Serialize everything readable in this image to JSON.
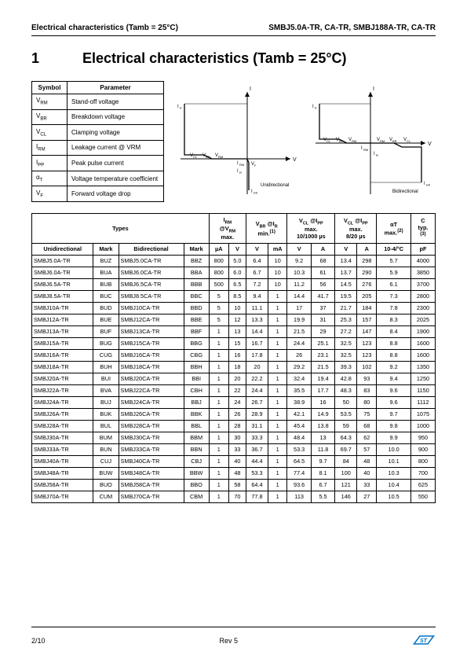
{
  "header": {
    "left": "Electrical characteristics (Tamb = 25°C)",
    "right": "SMBJ5.0A-TR, CA-TR, SMBJ188A-TR, CA-TR"
  },
  "section": {
    "num": "1",
    "title": "Electrical characteristics (Tamb = 25°C)"
  },
  "symbol_table": {
    "headers": [
      "Symbol",
      "Parameter"
    ],
    "rows": [
      {
        "sym": "V",
        "sub": "RM",
        "param": "Stand-off voltage"
      },
      {
        "sym": "V",
        "sub": "BR",
        "param": "Breakdown voltage"
      },
      {
        "sym": "V",
        "sub": "CL",
        "param": "Clamping voltage"
      },
      {
        "sym": "I",
        "sub": "RM",
        "param": "Leakage current @ VRM"
      },
      {
        "sym": "I",
        "sub": "PP",
        "param": "Peak pulse current"
      },
      {
        "sym": "α",
        "sub": "T",
        "param": "Voltage temperature coefficient"
      },
      {
        "sym": "V",
        "sub": "F",
        "param": "Forward voltage drop"
      }
    ]
  },
  "diagrams": {
    "left_label": "Unidirectional",
    "right_label": "Bidirectional",
    "axis_labels": {
      "vcl": "V_CL",
      "vbr": "V_BR",
      "vrm": "V_RM",
      "ir": "I_R",
      "irm": "I_RM",
      "if": "I_F",
      "ipp": "I_PP",
      "vf": "V_F",
      "i": "I",
      "v": "V"
    }
  },
  "data_table": {
    "group_headers": [
      {
        "label": "Types",
        "colspan": 4
      },
      {
        "label_html": "I<sub>RM</sub><br>@V<sub>RM</sub><br>max.",
        "colspan": 2
      },
      {
        "label_html": "V<sub>BR</sub> @I<sub>R</sub><br>min.<sup>(1)</sup>",
        "colspan": 2
      },
      {
        "label_html": "V<sub>CL</sub> @I<sub>PP</sub><br>max.<br>10/1000 µs",
        "colspan": 2
      },
      {
        "label_html": "V<sub>CL</sub> @I<sub>PP</sub><br>max.<br>8/20 µs",
        "colspan": 2
      },
      {
        "label_html": "αT<br>max.<sup>(2)</sup>",
        "colspan": 1
      },
      {
        "label_html": "C<br>typ.<br><sup>(3)</sup>",
        "colspan": 1
      }
    ],
    "sub_headers": [
      "Unidirectional",
      "Mark",
      "Bidirectional",
      "Mark",
      "µA",
      "V",
      "V",
      "mA",
      "V",
      "A",
      "V",
      "A",
      "10-4/°C",
      "pF"
    ],
    "rows": [
      [
        "SMBJ5.0A-TR",
        "BUZ",
        "SMBJ5.0CA-TR",
        "BBZ",
        "800",
        "5.0",
        "6.4",
        "10",
        "9.2",
        "68",
        "13.4",
        "298",
        "5.7",
        "4000"
      ],
      [
        "SMBJ6.0A-TR",
        "BUA",
        "SMBJ6.0CA-TR",
        "BBA",
        "800",
        "6.0",
        "6.7",
        "10",
        "10.3",
        "61",
        "13.7",
        "290",
        "5.9",
        "3850"
      ],
      [
        "SMBJ6.5A-TR",
        "BUB",
        "SMBJ6.5CA-TR",
        "BBB",
        "500",
        "6.5",
        "7.2",
        "10",
        "11.2",
        "56",
        "14.5",
        "276",
        "6.1",
        "3700"
      ],
      [
        "SMBJ8.5A-TR",
        "BUC",
        "SMBJ8.5CA-TR",
        "BBC",
        "5",
        "8.5",
        "9.4",
        "1",
        "14.4",
        "41.7",
        "19.5",
        "205",
        "7.3",
        "2800"
      ],
      [
        "SMBJ10A-TR",
        "BUD",
        "SMBJ10CA-TR",
        "BBD",
        "5",
        "10",
        "11.1",
        "1",
        "17",
        "37",
        "21.7",
        "184",
        "7.8",
        "2300"
      ],
      [
        "SMBJ12A-TR",
        "BUE",
        "SMBJ12CA-TR",
        "BBE",
        "5",
        "12",
        "13.3",
        "1",
        "19.9",
        "31",
        "25.3",
        "157",
        "8.3",
        "2025"
      ],
      [
        "SMBJ13A-TR",
        "BUF",
        "SMBJ13CA-TR",
        "BBF",
        "1",
        "13",
        "14.4",
        "1",
        "21.5",
        "29",
        "27.2",
        "147",
        "8.4",
        "1900"
      ],
      [
        "SMBJ15A-TR",
        "BUG",
        "SMBJ15CA-TR",
        "BBG",
        "1",
        "15",
        "16.7",
        "1",
        "24.4",
        "25.1",
        "32.5",
        "123",
        "8.8",
        "1600"
      ],
      [
        "SMBJ16A-TR",
        "CUG",
        "SMBJ16CA-TR",
        "CBG",
        "1",
        "16",
        "17.8",
        "1",
        "26",
        "23.1",
        "32.5",
        "123",
        "8.8",
        "1600"
      ],
      [
        "SMBJ18A-TR",
        "BUH",
        "SMBJ18CA-TR",
        "BBH",
        "1",
        "18",
        "20",
        "1",
        "29.2",
        "21.5",
        "39.3",
        "102",
        "9.2",
        "1350"
      ],
      [
        "SMBJ20A-TR",
        "BUI",
        "SMBJ20CA-TR",
        "BBI",
        "1",
        "20",
        "22.2",
        "1",
        "32.4",
        "19.4",
        "42.8",
        "93",
        "9.4",
        "1250"
      ],
      [
        "SMBJ22A-TR",
        "BVA",
        "SMBJ22CA-TR",
        "CBH",
        "1",
        "22",
        "24.4",
        "1",
        "35.5",
        "17.7",
        "48.3",
        "83",
        "9.6",
        "1150"
      ],
      [
        "SMBJ24A-TR",
        "BUJ",
        "SMBJ24CA-TR",
        "BBJ",
        "1",
        "24",
        "26.7",
        "1",
        "38.9",
        "16",
        "50",
        "80",
        "9.6",
        "1112"
      ],
      [
        "SMBJ26A-TR",
        "BUK",
        "SMBJ26CA-TR",
        "BBK",
        "1",
        "26",
        "28.9",
        "1",
        "42.1",
        "14.9",
        "53.5",
        "75",
        "9.7",
        "1075"
      ],
      [
        "SMBJ28A-TR",
        "BUL",
        "SMBJ28CA-TR",
        "BBL",
        "1",
        "28",
        "31.1",
        "1",
        "45.4",
        "13.8",
        "59",
        "68",
        "9.8",
        "1000"
      ],
      [
        "SMBJ30A-TR",
        "BUM",
        "SMBJ30CA-TR",
        "BBM",
        "1",
        "30",
        "33.3",
        "1",
        "48.4",
        "13",
        "64.3",
        "62",
        "9.9",
        "950"
      ],
      [
        "SMBJ33A-TR",
        "BUN",
        "SMBJ33CA-TR",
        "BBN",
        "1",
        "33",
        "36.7",
        "1",
        "53.3",
        "11.8",
        "69.7",
        "57",
        "10.0",
        "900"
      ],
      [
        "SMBJ40A-TR",
        "CUJ",
        "SMBJ40CA-TR",
        "CBJ",
        "1",
        "40",
        "44.4",
        "1",
        "64.5",
        "9.7",
        "84",
        "48",
        "10.1",
        "800"
      ],
      [
        "SMBJ48A-TR",
        "BUW",
        "SMBJ48CA-TR",
        "BBW",
        "1",
        "48",
        "53.3",
        "1",
        "77.4",
        "8.1",
        "100",
        "40",
        "10.3",
        "700"
      ],
      [
        "SMBJ58A-TR",
        "BUO",
        "SMBJ58CA-TR",
        "BBO",
        "1",
        "58",
        "64.4",
        "1",
        "93.6",
        "6.7",
        "121",
        "33",
        "10.4",
        "625"
      ],
      [
        "SMBJ70A-TR",
        "CUM",
        "SMBJ70CA-TR",
        "CBM",
        "1",
        "70",
        "77.8",
        "1",
        "113",
        "5.5",
        "146",
        "27",
        "10.5",
        "550"
      ]
    ]
  },
  "footer": {
    "page": "2/10",
    "rev": "Rev 5"
  },
  "colors": {
    "accent": "#0072c6",
    "border": "#000000"
  }
}
